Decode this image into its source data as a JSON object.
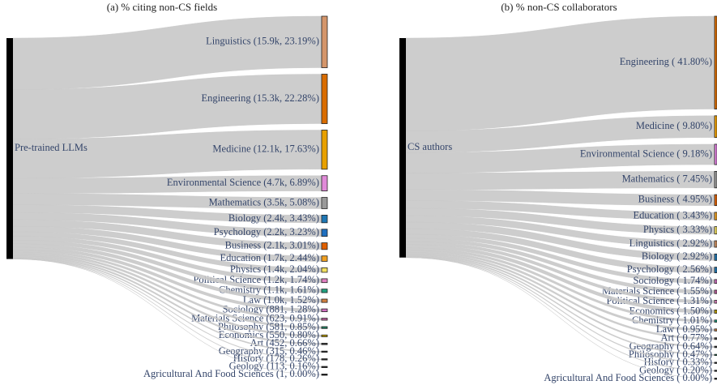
{
  "chart_data": [
    {
      "type": "sankey",
      "title": "(a) % citing non-CS fields",
      "source": "Pre-trained LLMs",
      "labels": [
        "Linguistics (15.9k,  23.19%)",
        "Engineering (15.3k,  22.28%)",
        "Medicine (12.1k,  17.63%)",
        "Environmental Science (4.7k,  6.89%)",
        "Mathematics (3.5k,  5.08%)",
        "Biology (2.4k,  3.43%)",
        "Psychology (2.2k,  3.23%)",
        "Business (2.1k,  3.01%)",
        "Education (1.7k,  2.44%)",
        "Physics (1.4k,  2.04%)",
        "Political Science (1.2k,  1.74%)",
        "Chemistry (1.1k,  1.61%)",
        "Law (1.0k,  1.52%)",
        "Sociology (881,  1.28%)",
        "Materials Science (623,  0.91%)",
        "Philosophy (581,  0.85%)",
        "Economics (550,  0.80%)",
        "Art (452,  0.66%)",
        "Geography (315,  0.46%)",
        "History (178,  0.26%)",
        "Geology (113,  0.16%)",
        "Agricultural And Food Sciences (1,  0.00%)"
      ],
      "values": [
        23.19,
        22.28,
        17.63,
        6.89,
        5.08,
        3.43,
        3.23,
        3.01,
        2.44,
        2.04,
        1.74,
        1.61,
        1.52,
        1.28,
        0.91,
        0.85,
        0.8,
        0.66,
        0.46,
        0.26,
        0.16,
        0.0
      ],
      "colors": [
        "#d4956a",
        "#d96c00",
        "#e8a000",
        "#e08ad8",
        "#999999",
        "#1f77b4",
        "#1f6fbf",
        "#e06000",
        "#f0a020",
        "#f2e060",
        "#e080c0",
        "#20a080",
        "#d08040",
        "#d070c0",
        "#c060a0",
        "#208060",
        "#c0a000",
        "#404040",
        "#303030",
        "#222222",
        "#222222",
        "#000000"
      ]
    },
    {
      "type": "sankey",
      "title": "(b) % non-CS collaborators",
      "source": "CS authors",
      "labels": [
        "Engineering ( 41.80%)",
        "Medicine ( 9.80%)",
        "Environmental Science ( 9.18%)",
        "Mathematics ( 7.45%)",
        "Business ( 4.95%)",
        "Education ( 3.43%)",
        "Physics ( 3.33%)",
        "Linguistics ( 2.92%)",
        "Biology ( 2.92%)",
        "Psychology ( 2.56%)",
        "Sociology ( 1.74%)",
        "Materials Science ( 1.55%)",
        "Political Science ( 1.31%)",
        "Economics ( 1.50%)",
        "Chemistry ( 1.01%)",
        "Law ( 0.95%)",
        "Art ( 0.77%)",
        "Geography ( 0.64%)",
        "Philosophy ( 0.47%)",
        "History ( 0.33%)",
        "Geology ( 0.20%)",
        "Agricultural And Food Sciences ( 0.00%)"
      ],
      "values": [
        41.8,
        9.8,
        9.18,
        7.45,
        4.95,
        3.43,
        3.33,
        2.92,
        2.92,
        2.56,
        1.74,
        1.55,
        1.31,
        1.5,
        1.01,
        0.95,
        0.77,
        0.64,
        0.47,
        0.33,
        0.2,
        0.0
      ],
      "colors": [
        "#d96c00",
        "#f0a000",
        "#e080e0",
        "#999999",
        "#e06000",
        "#f0a020",
        "#f2e060",
        "#d09060",
        "#1f77b4",
        "#1f77b4",
        "#d070c0",
        "#c060a0",
        "#e080c0",
        "#c0a000",
        "#20a080",
        "#d08040",
        "#404040",
        "#303030",
        "#208060",
        "#222222",
        "#222222",
        "#000000"
      ]
    }
  ]
}
